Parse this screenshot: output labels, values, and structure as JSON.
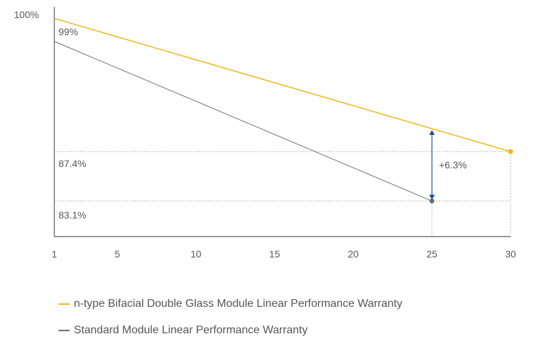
{
  "chart_data": {
    "type": "line",
    "y_top_label": "100%",
    "x_ticks": [
      1,
      5,
      10,
      15,
      20,
      25,
      30
    ],
    "xlim": [
      1,
      30
    ],
    "ylim": [
      80,
      100
    ],
    "series": [
      {
        "name": "n-type Bifacial Double Glass Module Linear Performance Warranty",
        "color": "#F2B519",
        "x": [
          1,
          30
        ],
        "y": [
          99,
          87.4
        ],
        "end_marker": true
      },
      {
        "name": "Standard Module Linear Performance Warranty",
        "color": "#6e6e6e",
        "x": [
          1,
          25
        ],
        "y": [
          97,
          83.1
        ],
        "end_marker": true
      }
    ],
    "value_labels": [
      {
        "text": "99%",
        "y": 99
      },
      {
        "text": "87.4%",
        "y": 87.4
      },
      {
        "text": "83.1%",
        "y": 83.1
      }
    ],
    "annotation": {
      "text": "+6.3%",
      "x": 25,
      "y_from": 89.4,
      "y_to": 83.1,
      "color": "#1f4e9c"
    },
    "grid": false
  }
}
